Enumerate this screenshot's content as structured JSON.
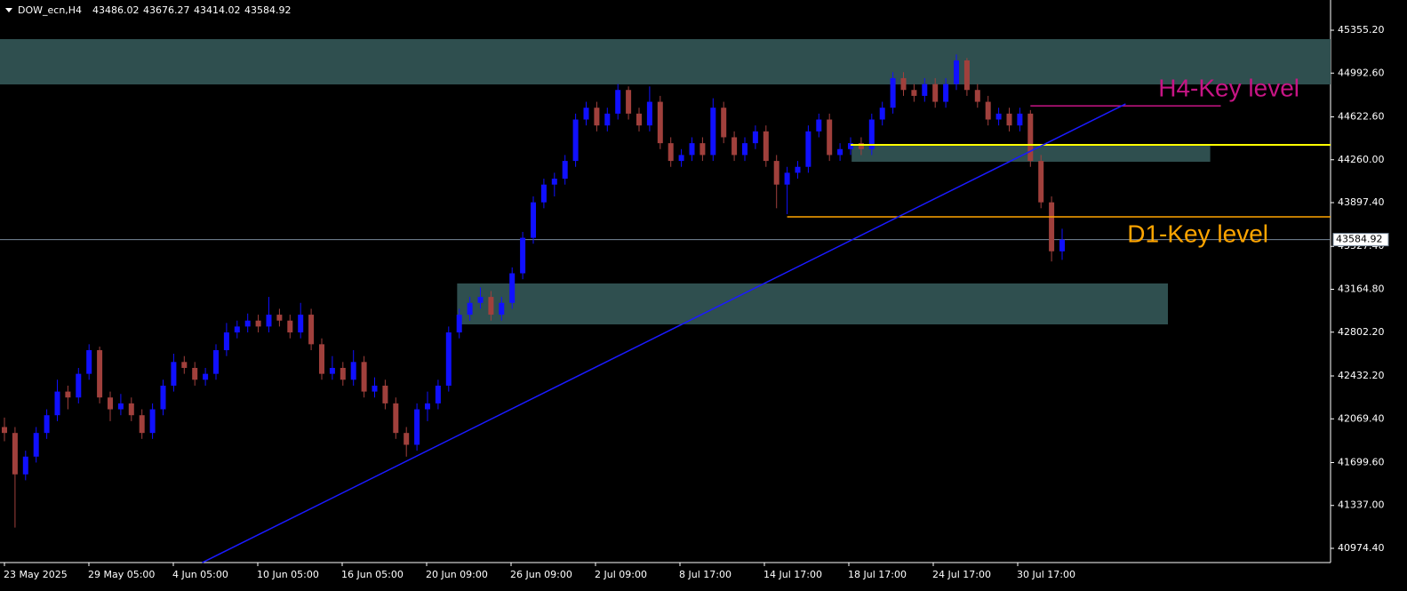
{
  "chart_data": {
    "type": "candlestick",
    "symbol": "DOW_ecn,H4",
    "ylim": [
      40854.2,
      45610.7
    ],
    "yticks": [
      {
        "value": 45355.2,
        "label": "45355.20"
      },
      {
        "value": 44992.6,
        "label": "44992.60"
      },
      {
        "value": 44622.6,
        "label": "44622.60"
      },
      {
        "value": 44260,
        "label": "44260.00"
      },
      {
        "value": 43897.4,
        "label": "43897.40"
      },
      {
        "value": 43527.4,
        "label": "43527.40"
      },
      {
        "value": 43164.8,
        "label": "43164.80"
      },
      {
        "value": 42802.2,
        "label": "42802.20"
      },
      {
        "value": 42432.2,
        "label": "42432.20"
      },
      {
        "value": 42069.4,
        "label": "42069.40"
      },
      {
        "value": 41699.6,
        "label": "41699.60"
      },
      {
        "value": 41337,
        "label": "41337.00"
      },
      {
        "value": 40974.4,
        "label": "40974.40"
      }
    ],
    "x_labels": [
      "23 May 2025",
      "29 May 05:00",
      "4 Jun 05:00",
      "10 Jun 05:00",
      "16 Jun 05:00",
      "20 Jun 09:00",
      "26 Jun 09:00",
      "2 Jul 09:00",
      "8 Jul 17:00",
      "14 Jul 17:00",
      "18 Jul 17:00",
      "24 Jul 17:00",
      "30 Jul 17:00"
    ],
    "bull_color": "#1010ff",
    "bear_color": "#a0403c",
    "grid": false,
    "candles": [
      [
        42000,
        42080,
        41880,
        41950
      ],
      [
        41950,
        42000,
        41150,
        41600
      ],
      [
        41600,
        41800,
        41550,
        41750
      ],
      [
        41750,
        42000,
        41700,
        41950
      ],
      [
        41950,
        42150,
        41900,
        42100
      ],
      [
        42100,
        42400,
        42050,
        42300
      ],
      [
        42300,
        42350,
        42150,
        42250
      ],
      [
        42250,
        42500,
        42200,
        42450
      ],
      [
        42450,
        42700,
        42400,
        42650
      ],
      [
        42650,
        42680,
        42200,
        42250
      ],
      [
        42250,
        42300,
        42050,
        42150
      ],
      [
        42150,
        42280,
        42100,
        42200
      ],
      [
        42200,
        42250,
        42050,
        42100
      ],
      [
        42100,
        42150,
        41900,
        41950
      ],
      [
        41950,
        42200,
        41900,
        42150
      ],
      [
        42150,
        42400,
        42100,
        42350
      ],
      [
        42350,
        42620,
        42300,
        42550
      ],
      [
        42550,
        42600,
        42450,
        42500
      ],
      [
        42500,
        42550,
        42350,
        42400
      ],
      [
        42400,
        42500,
        42350,
        42450
      ],
      [
        42450,
        42700,
        42400,
        42650
      ],
      [
        42650,
        42880,
        42600,
        42800
      ],
      [
        42800,
        42900,
        42750,
        42850
      ],
      [
        42850,
        42960,
        42800,
        42900
      ],
      [
        42900,
        42950,
        42800,
        42850
      ],
      [
        42850,
        43100,
        42800,
        42950
      ],
      [
        42950,
        43000,
        42850,
        42900
      ],
      [
        42900,
        42950,
        42750,
        42800
      ],
      [
        42800,
        43050,
        42750,
        42950
      ],
      [
        42950,
        43000,
        42650,
        42700
      ],
      [
        42700,
        42750,
        42400,
        42450
      ],
      [
        42450,
        42600,
        42400,
        42500
      ],
      [
        42500,
        42550,
        42350,
        42400
      ],
      [
        42400,
        42650,
        42350,
        42550
      ],
      [
        42550,
        42600,
        42250,
        42300
      ],
      [
        42300,
        42420,
        42250,
        42350
      ],
      [
        42350,
        42400,
        42150,
        42200
      ],
      [
        42200,
        42250,
        41900,
        41950
      ],
      [
        41950,
        42000,
        41750,
        41850
      ],
      [
        41850,
        42200,
        41800,
        42150
      ],
      [
        42150,
        42300,
        42050,
        42200
      ],
      [
        42200,
        42400,
        42150,
        42350
      ],
      [
        42350,
        42850,
        42300,
        42800
      ],
      [
        42800,
        43000,
        42750,
        42950
      ],
      [
        42950,
        43100,
        42900,
        43050
      ],
      [
        43050,
        43180,
        43000,
        43100
      ],
      [
        43100,
        43150,
        42900,
        42950
      ],
      [
        42950,
        43100,
        42900,
        43050
      ],
      [
        43050,
        43350,
        43000,
        43300
      ],
      [
        43300,
        43650,
        43250,
        43600
      ],
      [
        43600,
        43950,
        43550,
        43900
      ],
      [
        43900,
        44100,
        43850,
        44050
      ],
      [
        44050,
        44150,
        43950,
        44100
      ],
      [
        44100,
        44300,
        44050,
        44250
      ],
      [
        44250,
        44650,
        44200,
        44600
      ],
      [
        44600,
        44750,
        44550,
        44700
      ],
      [
        44700,
        44750,
        44500,
        44550
      ],
      [
        44550,
        44700,
        44500,
        44650
      ],
      [
        44650,
        44900,
        44600,
        44850
      ],
      [
        44850,
        44880,
        44600,
        44650
      ],
      [
        44650,
        44700,
        44500,
        44550
      ],
      [
        44550,
        44880,
        44500,
        44750
      ],
      [
        44750,
        44800,
        44350,
        44400
      ],
      [
        44400,
        44450,
        44200,
        44250
      ],
      [
        44250,
        44350,
        44200,
        44300
      ],
      [
        44300,
        44450,
        44250,
        44400
      ],
      [
        44400,
        44450,
        44250,
        44300
      ],
      [
        44300,
        44780,
        44250,
        44700
      ],
      [
        44700,
        44750,
        44400,
        44450
      ],
      [
        44450,
        44500,
        44250,
        44300
      ],
      [
        44300,
        44450,
        44250,
        44400
      ],
      [
        44400,
        44550,
        44350,
        44500
      ],
      [
        44500,
        44550,
        44200,
        44250
      ],
      [
        44250,
        44300,
        43850,
        44050
      ],
      [
        44050,
        44200,
        43800,
        44150
      ],
      [
        44150,
        44250,
        44100,
        44200
      ],
      [
        44200,
        44550,
        44150,
        44500
      ],
      [
        44500,
        44650,
        44450,
        44600
      ],
      [
        44600,
        44650,
        44250,
        44300
      ],
      [
        44300,
        44400,
        44250,
        44350
      ],
      [
        44350,
        44450,
        44300,
        44400
      ],
      [
        44400,
        44450,
        44300,
        44350
      ],
      [
        44350,
        44650,
        44300,
        44600
      ],
      [
        44600,
        44750,
        44550,
        44700
      ],
      [
        44700,
        45000,
        44650,
        44950
      ],
      [
        44950,
        45000,
        44800,
        44850
      ],
      [
        44850,
        44900,
        44750,
        44800
      ],
      [
        44800,
        44950,
        44750,
        44900
      ],
      [
        44900,
        44950,
        44700,
        44750
      ],
      [
        44750,
        44950,
        44700,
        44900
      ],
      [
        44900,
        45150,
        44850,
        45100
      ],
      [
        45100,
        45120,
        44800,
        44850
      ],
      [
        44850,
        44900,
        44700,
        44750
      ],
      [
        44750,
        44800,
        44550,
        44600
      ],
      [
        44600,
        44700,
        44550,
        44650
      ],
      [
        44650,
        44700,
        44500,
        44550
      ],
      [
        44550,
        44700,
        44500,
        44650
      ],
      [
        44650,
        44680,
        44200,
        44250
      ],
      [
        44250,
        44300,
        43850,
        43900
      ],
      [
        43900,
        43950,
        43400,
        43486.02
      ],
      [
        43486.02,
        43676.27,
        43414.02,
        43584.92
      ]
    ],
    "zones": [
      {
        "top": 45280,
        "bottom": 44897,
        "start": -0.5,
        "end": 125.5,
        "color": "#2f4f4f"
      },
      {
        "top": 44386,
        "bottom": 44243,
        "start": 80.1,
        "end": 114,
        "color": "#2f4f4f"
      },
      {
        "top": 43214,
        "bottom": 42868,
        "start": 42.8,
        "end": 110,
        "color": "#2f4f4f"
      }
    ],
    "levels": [
      {
        "price": 44716,
        "start": 97,
        "end": 115,
        "color": "#c71585",
        "label": "H4-Key level"
      },
      {
        "price": 44386,
        "start": 80,
        "end": 125.5,
        "color": "#ffff00"
      },
      {
        "price": 43777,
        "start": 74,
        "end": 125.5,
        "color": "#ffa500",
        "label": "D1-Key level"
      }
    ],
    "trendline": {
      "start": 18.7,
      "end": 106,
      "start_price": 40854,
      "end_price": 44732,
      "color": "#1a1aff"
    },
    "price_line_color": "#778899"
  }
}
